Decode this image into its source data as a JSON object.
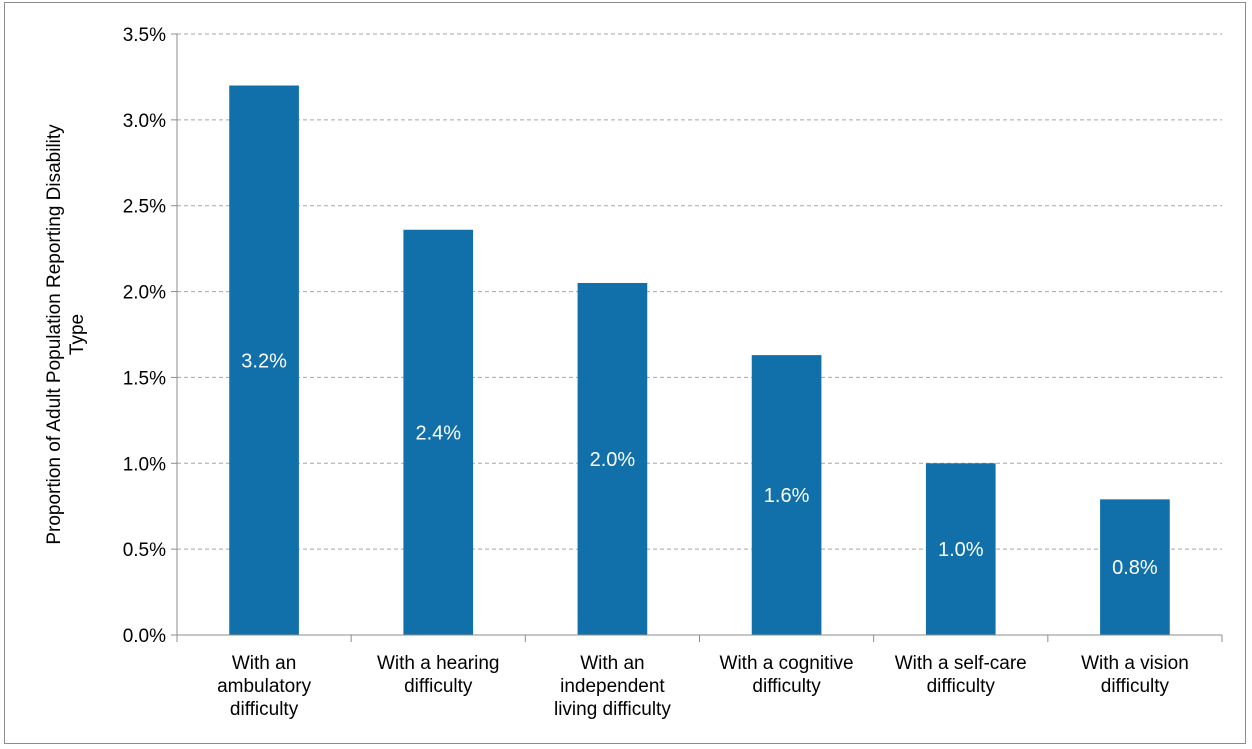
{
  "chart_data": {
    "type": "bar",
    "title": "",
    "xlabel": "",
    "ylabel": "Proportion of Adult Population Reporting Disability Type",
    "ylabel_lines": [
      "Proportion of Adult Population Reporting Disability",
      "Type"
    ],
    "categories": [
      "With an ambulatory difficulty",
      "With a hearing difficulty",
      "With an independent living difficulty",
      "With a cognitive difficulty",
      "With a self-care difficulty",
      "With a vision difficulty"
    ],
    "category_lines": [
      [
        "With an",
        "ambulatory",
        "difficulty"
      ],
      [
        "With a hearing",
        "difficulty"
      ],
      [
        "With an",
        "independent",
        "living difficulty"
      ],
      [
        "With a cognitive",
        "difficulty"
      ],
      [
        "With a self-care",
        "difficulty"
      ],
      [
        "With a vision",
        "difficulty"
      ]
    ],
    "values": [
      3.2,
      2.36,
      2.05,
      1.63,
      1.0,
      0.79
    ],
    "data_labels": [
      "3.2%",
      "2.4%",
      "2.0%",
      "1.6%",
      "1.0%",
      "0.8%"
    ],
    "ylim": [
      0,
      3.5
    ],
    "yticks": [
      0,
      0.5,
      1.0,
      1.5,
      2.0,
      2.5,
      3.0,
      3.5
    ],
    "ytick_labels": [
      "0.0%",
      "0.5%",
      "1.0%",
      "1.5%",
      "2.0%",
      "2.5%",
      "3.0%",
      "3.5%"
    ],
    "grid": true,
    "legend": "none",
    "bar_color": "#1170aa",
    "grid_color": "#a6a6a6"
  }
}
